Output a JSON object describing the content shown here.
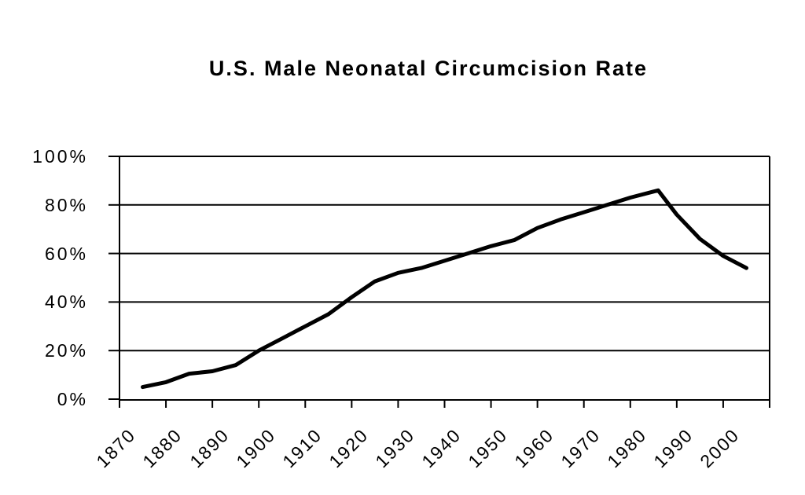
{
  "chart_data": {
    "type": "line",
    "title": "U.S. Male Neonatal Circumcision Rate",
    "xlabel": "",
    "ylabel": "",
    "x_categories": [
      "1870",
      "1880",
      "1890",
      "1900",
      "1910",
      "1920",
      "1930",
      "1940",
      "1950",
      "1960",
      "1970",
      "1980",
      "1990",
      "2000"
    ],
    "y_tick_labels": [
      "0%",
      "20%",
      "40%",
      "60%",
      "80%",
      "100%"
    ],
    "ylim": [
      0,
      100
    ],
    "x_range_years": [
      1870,
      2000
    ],
    "grid": "horizontal",
    "legend_position": "none",
    "line_color": "#000000",
    "background_color": "#ffffff",
    "series": [
      {
        "name": "U.S. male neonatal circumcision rate (%)",
        "points": [
          [
            1870,
            5
          ],
          [
            1875,
            7
          ],
          [
            1880,
            10.5
          ],
          [
            1885,
            11.5
          ],
          [
            1890,
            14
          ],
          [
            1895,
            20
          ],
          [
            1900,
            25
          ],
          [
            1905,
            30
          ],
          [
            1910,
            35
          ],
          [
            1915,
            42
          ],
          [
            1920,
            48.5
          ],
          [
            1925,
            52
          ],
          [
            1930,
            54
          ],
          [
            1935,
            57
          ],
          [
            1940,
            60
          ],
          [
            1945,
            63
          ],
          [
            1950,
            65.5
          ],
          [
            1955,
            70.5
          ],
          [
            1960,
            74
          ],
          [
            1965,
            77
          ],
          [
            1970,
            80
          ],
          [
            1975,
            83
          ],
          [
            1980,
            85.5
          ],
          [
            1981,
            86
          ],
          [
            1985,
            76
          ],
          [
            1990,
            66
          ],
          [
            1995,
            59
          ],
          [
            2000,
            54
          ]
        ]
      }
    ]
  }
}
